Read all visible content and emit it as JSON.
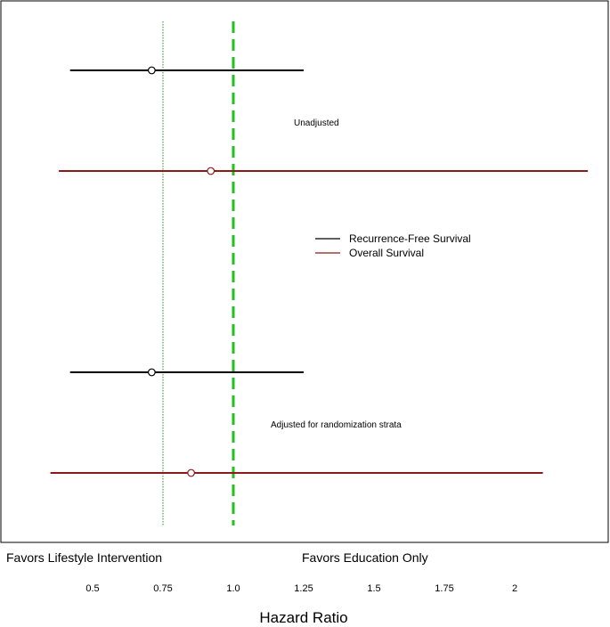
{
  "chart_data": {
    "type": "forest",
    "xlabel": "Hazard Ratio",
    "x_ticks": [
      {
        "value": 0.5,
        "label": "0.5"
      },
      {
        "value": 0.75,
        "label": "0.75"
      },
      {
        "value": 1.0,
        "label": "1.0"
      },
      {
        "value": 1.25,
        "label": "1.25"
      },
      {
        "value": 1.5,
        "label": "1.5"
      },
      {
        "value": 1.75,
        "label": "1.75"
      },
      {
        "value": 2.0,
        "label": "2"
      }
    ],
    "xlim": [
      0.19,
      2.35
    ],
    "reference_lines": [
      {
        "value": 1.0,
        "style": "dashed",
        "color": "#22c022"
      },
      {
        "value": 0.75,
        "style": "dotted",
        "color": "#2e8b2e"
      }
    ],
    "favor_labels": {
      "left": "Favors Lifestyle Intervention",
      "right": "Favors Education Only"
    },
    "legend": {
      "position": "center-right",
      "entries": [
        {
          "label": "Recurrence-Free Survival",
          "color": "#000000"
        },
        {
          "label": "Overall Survival",
          "color": "#8b1a1a"
        }
      ]
    },
    "groups": [
      {
        "label": "Unadjusted",
        "estimates": [
          {
            "series": "Recurrence-Free Survival",
            "hr": 0.71,
            "lower": 0.42,
            "upper": 1.25,
            "color": "#000000"
          },
          {
            "series": "Overall Survival",
            "hr": 0.92,
            "lower": 0.38,
            "upper": 2.26,
            "color": "#8b1a1a"
          }
        ]
      },
      {
        "label": "Adjusted for randomization strata",
        "estimates": [
          {
            "series": "Recurrence-Free Survival",
            "hr": 0.71,
            "lower": 0.42,
            "upper": 1.25,
            "color": "#000000"
          },
          {
            "series": "Overall Survival",
            "hr": 0.85,
            "lower": 0.35,
            "upper": 2.1,
            "color": "#8b1a1a"
          }
        ]
      }
    ]
  }
}
